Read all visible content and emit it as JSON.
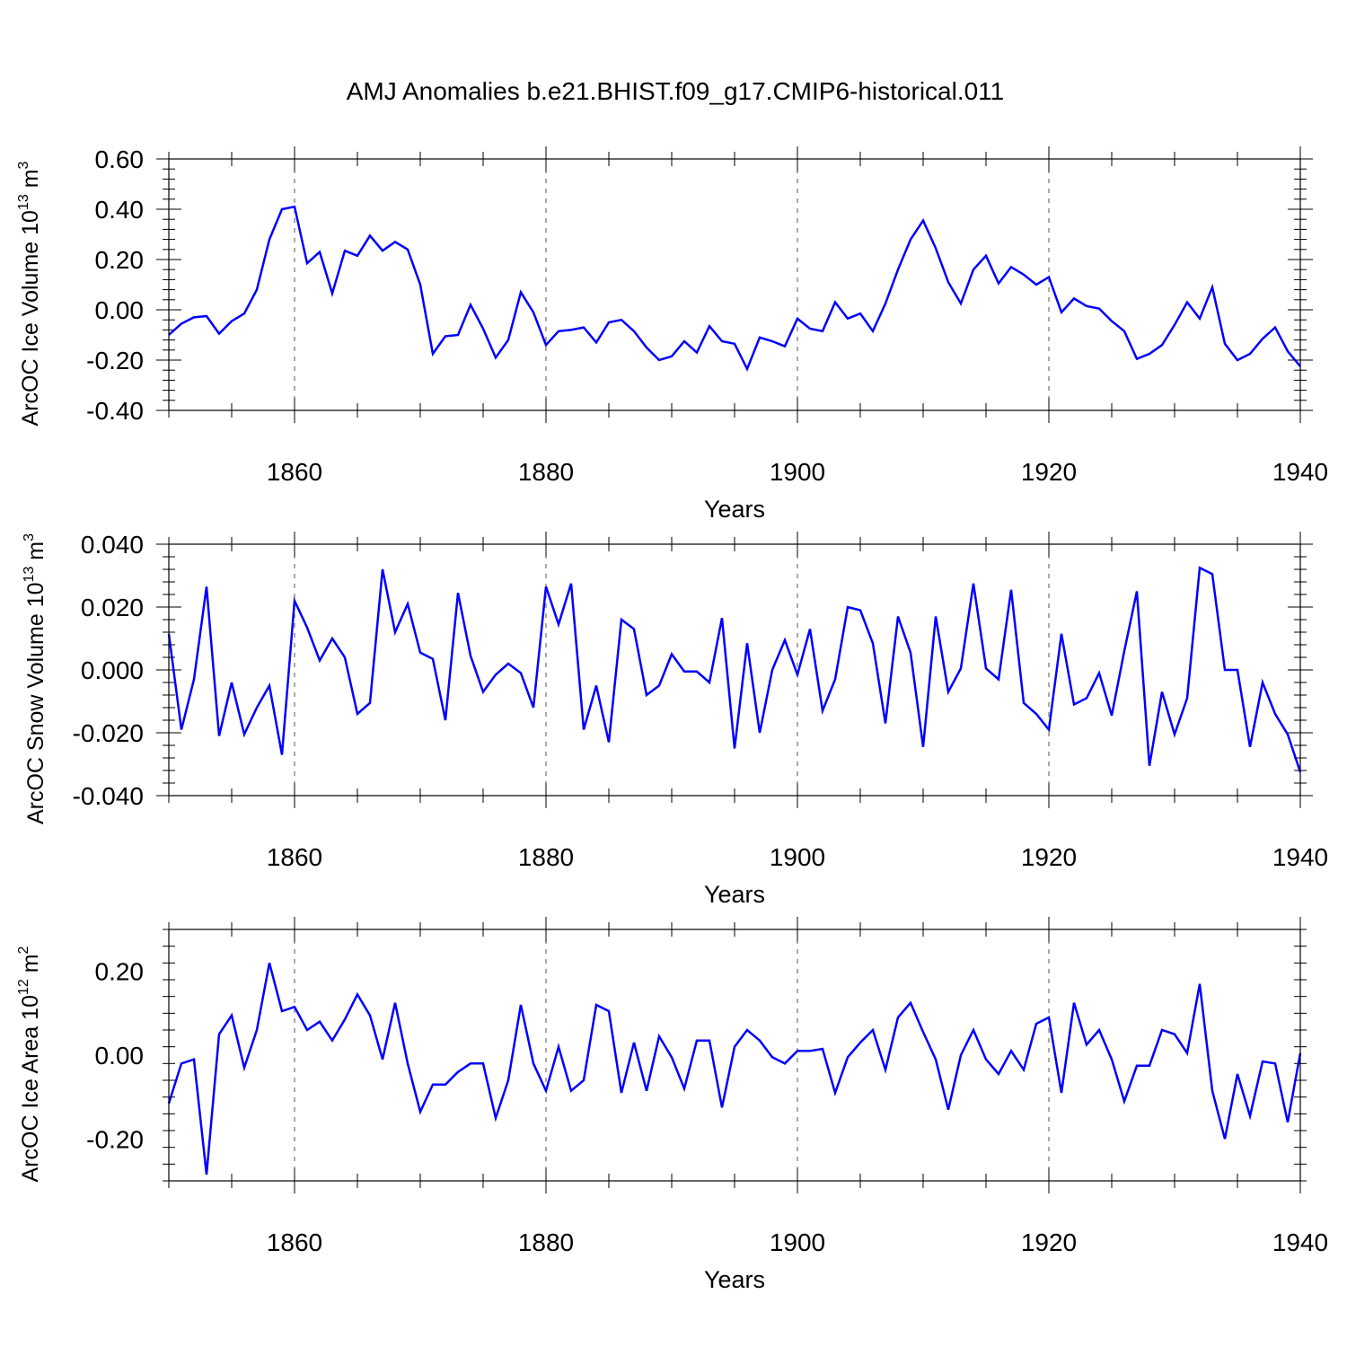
{
  "title": "AMJ Anomalies b.e21.BHIST.f09_g17.CMIP6-historical.011",
  "line_color": "#0000ff",
  "chart_data": [
    {
      "type": "line",
      "name": "ice-volume",
      "ylabel": "ArcOC Ice Volume 10",
      "ylabel_sup": "13",
      "ylabel_unit": " m",
      "ylabel_unit_sup": "3",
      "xlabel": "Years",
      "xlim": [
        1850,
        1940
      ],
      "ylim": [
        -0.4,
        0.6
      ],
      "yticks": [
        -0.4,
        -0.2,
        0.0,
        0.2,
        0.4,
        0.6
      ],
      "ytick_labels": [
        "-0.40",
        "-0.20",
        "0.00",
        "0.20",
        "0.40",
        "0.60"
      ],
      "xticks": [
        1860,
        1880,
        1900,
        1920,
        1940
      ],
      "xtick_labels": [
        "1860",
        "1880",
        "1900",
        "1920",
        "1940"
      ],
      "x_start": 1850,
      "values": [
        -0.1,
        -0.055,
        -0.03,
        -0.025,
        -0.095,
        -0.045,
        -0.015,
        0.08,
        0.28,
        0.4,
        0.41,
        0.185,
        0.23,
        0.065,
        0.235,
        0.215,
        0.295,
        0.235,
        0.27,
        0.24,
        0.1,
        -0.175,
        -0.105,
        -0.1,
        0.02,
        -0.075,
        -0.19,
        -0.12,
        0.07,
        -0.01,
        -0.14,
        -0.085,
        -0.08,
        -0.07,
        -0.13,
        -0.05,
        -0.04,
        -0.085,
        -0.15,
        -0.2,
        -0.185,
        -0.125,
        -0.17,
        -0.065,
        -0.125,
        -0.135,
        -0.235,
        -0.11,
        -0.125,
        -0.145,
        -0.035,
        -0.075,
        -0.085,
        0.03,
        -0.035,
        -0.015,
        -0.085,
        0.025,
        0.16,
        0.28,
        0.355,
        0.245,
        0.11,
        0.025,
        0.16,
        0.215,
        0.105,
        0.17,
        0.14,
        0.1,
        0.13,
        -0.01,
        0.045,
        0.015,
        0.005,
        -0.045,
        -0.085,
        -0.195,
        -0.175,
        -0.14,
        -0.06,
        0.03,
        -0.035,
        0.09,
        -0.135,
        -0.2,
        -0.175,
        -0.115,
        -0.07,
        -0.165,
        -0.225
      ]
    },
    {
      "type": "line",
      "name": "snow-volume",
      "ylabel": "ArcOC Snow Volume 10",
      "ylabel_sup": "13",
      "ylabel_unit": " m",
      "ylabel_unit_sup": "3",
      "xlabel": "Years",
      "xlim": [
        1850,
        1940
      ],
      "ylim": [
        -0.04,
        0.04
      ],
      "yticks": [
        -0.04,
        -0.02,
        0.0,
        0.02,
        0.04
      ],
      "ytick_labels": [
        "-0.040",
        "-0.020",
        "0.000",
        "0.020",
        "0.040"
      ],
      "xticks": [
        1860,
        1880,
        1900,
        1920,
        1940
      ],
      "xtick_labels": [
        "1860",
        "1880",
        "1900",
        "1920",
        "1940"
      ],
      "x_start": 1850,
      "values": [
        0.0115,
        -0.019,
        -0.003,
        0.0265,
        -0.021,
        -0.004,
        -0.0205,
        -0.012,
        -0.005,
        -0.027,
        0.022,
        0.0135,
        0.003,
        0.01,
        0.004,
        -0.014,
        -0.0105,
        0.032,
        0.012,
        0.021,
        0.0055,
        0.0035,
        -0.016,
        0.0245,
        0.0045,
        -0.007,
        -0.0015,
        0.002,
        -0.001,
        -0.012,
        0.0265,
        0.0145,
        0.0275,
        -0.019,
        -0.005,
        -0.023,
        0.016,
        0.013,
        -0.008,
        -0.005,
        0.005,
        -0.0005,
        -0.0005,
        -0.004,
        0.0165,
        -0.025,
        0.0085,
        -0.02,
        0.0,
        0.0095,
        -0.0015,
        0.013,
        -0.013,
        -0.003,
        0.02,
        0.019,
        0.0085,
        -0.017,
        0.017,
        0.0055,
        -0.0245,
        0.017,
        -0.007,
        0.0005,
        0.0275,
        0.0005,
        -0.003,
        0.0255,
        -0.0105,
        -0.014,
        -0.019,
        0.0115,
        -0.011,
        -0.009,
        -0.001,
        -0.0145,
        0.006,
        0.025,
        -0.0305,
        -0.007,
        -0.0205,
        -0.009,
        0.0325,
        0.0305,
        0.0,
        0.0,
        -0.0245,
        -0.004,
        -0.014,
        -0.0205,
        -0.0325
      ]
    },
    {
      "type": "line",
      "name": "ice-area",
      "ylabel": "ArcOC Ice Area 10",
      "ylabel_sup": "12",
      "ylabel_unit": " m",
      "ylabel_unit_sup": "2",
      "xlabel": "Years",
      "xlim": [
        1850,
        1940
      ],
      "ylim": [
        -0.3,
        0.3
      ],
      "yticks": [
        -0.2,
        0.0,
        0.2
      ],
      "ytick_labels": [
        "-0.20",
        "0.00",
        "0.20"
      ],
      "xticks": [
        1860,
        1880,
        1900,
        1920,
        1940
      ],
      "xtick_labels": [
        "1860",
        "1880",
        "1900",
        "1920",
        "1940"
      ],
      "x_start": 1850,
      "values": [
        -0.115,
        -0.02,
        -0.01,
        -0.285,
        0.05,
        0.095,
        -0.03,
        0.06,
        0.22,
        0.105,
        0.115,
        0.06,
        0.08,
        0.035,
        0.085,
        0.145,
        0.095,
        -0.01,
        0.125,
        -0.02,
        -0.135,
        -0.07,
        -0.07,
        -0.04,
        -0.02,
        -0.02,
        -0.15,
        -0.06,
        0.12,
        -0.02,
        -0.085,
        0.02,
        -0.085,
        -0.06,
        0.12,
        0.105,
        -0.09,
        0.03,
        -0.085,
        0.045,
        -0.005,
        -0.08,
        0.035,
        0.035,
        -0.125,
        0.02,
        0.06,
        0.035,
        -0.005,
        -0.02,
        0.01,
        0.01,
        0.015,
        -0.09,
        -0.005,
        0.03,
        0.06,
        -0.035,
        0.09,
        0.125,
        0.055,
        -0.01,
        -0.13,
        0.0,
        0.06,
        -0.01,
        -0.045,
        0.01,
        -0.035,
        0.075,
        0.09,
        -0.09,
        0.125,
        0.025,
        0.06,
        -0.01,
        -0.11,
        -0.025,
        -0.025,
        0.06,
        0.05,
        0.005,
        0.17,
        -0.085,
        -0.2,
        -0.045,
        -0.145,
        -0.015,
        -0.02,
        -0.16,
        0.005
      ]
    }
  ]
}
